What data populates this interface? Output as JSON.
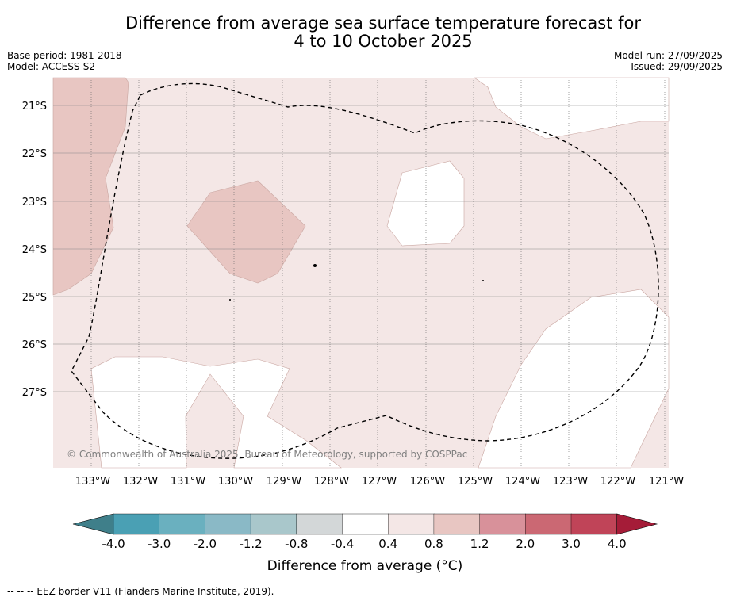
{
  "title": {
    "line1": "Difference from average sea surface temperature forecast for",
    "line2": "4 to 10 October 2025"
  },
  "info_left": {
    "base_period": "Base period: 1981-2018",
    "model": "Model: ACCESS-S2"
  },
  "info_right": {
    "model_run": "Model run: 27/09/2025",
    "issued": "Issued: 29/09/2025"
  },
  "map": {
    "lat_labels": [
      "21°S",
      "22°S",
      "23°S",
      "24°S",
      "25°S",
      "26°S",
      "27°S"
    ],
    "lon_labels": [
      "133°W",
      "132°W",
      "131°W",
      "130°W",
      "129°W",
      "128°W",
      "127°W",
      "126°W",
      "125°W",
      "124°W",
      "123°W",
      "122°W",
      "121°W"
    ],
    "copyright": "© Commonwealth of Australia 2025, Bureau of Meteorology, supported by COSPPac",
    "colors": {
      "band_0_4_0_8": "#f4e7e6",
      "band_0_8_1_2": "#e8c6c2",
      "neutral": "#ffffff",
      "eez_line": "#000000"
    }
  },
  "colorbar": {
    "labels": [
      "-4.0",
      "-3.0",
      "-2.0",
      "-1.2",
      "-0.8",
      "-0.4",
      "0.4",
      "0.8",
      "1.2",
      "2.0",
      "3.0",
      "4.0"
    ],
    "colors": [
      "#3f7f8a",
      "#4aa0b4",
      "#6ab0bf",
      "#8ab9c6",
      "#a9c7cb",
      "#d3d7d8",
      "#ffffff",
      "#f4e7e6",
      "#e8c6c2",
      "#d8919a",
      "#cb6873",
      "#c04458",
      "#a51c38"
    ],
    "title": "Difference from average (°C)"
  },
  "footer": "--  --  -- EEZ border V11 (Flanders Marine Institute, 2019)."
}
